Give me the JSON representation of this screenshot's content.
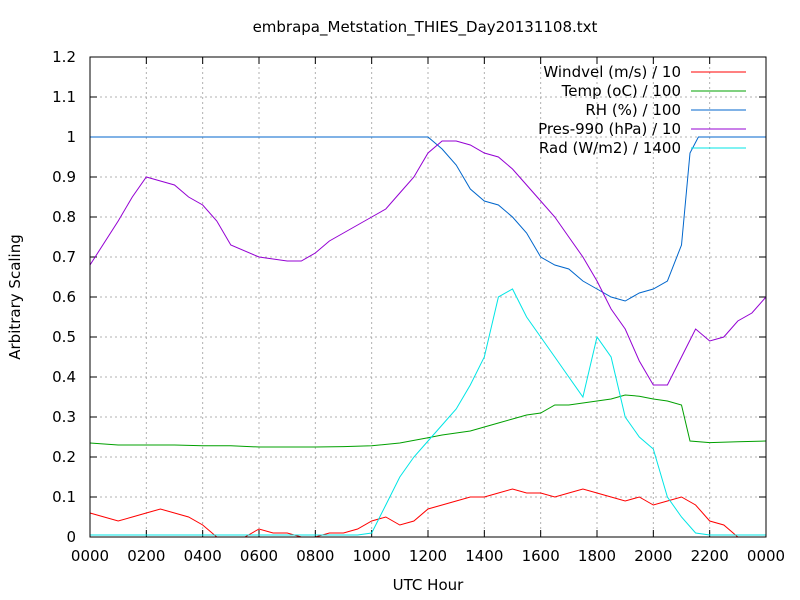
{
  "chart_data": {
    "type": "line",
    "title": "embrapa_Metstation_THIES_Day20131108.txt",
    "xlabel": "UTC Hour",
    "ylabel": "Arbitrary Scaling",
    "xlim": [
      0,
      24
    ],
    "ylim": [
      0,
      1.2
    ],
    "x_ticks": [
      "0000",
      "0200",
      "0400",
      "0600",
      "0800",
      "1000",
      "1200",
      "1400",
      "1600",
      "1800",
      "2000",
      "2200",
      "0000"
    ],
    "y_ticks": [
      "0",
      "0.1",
      "0.2",
      "0.3",
      "0.4",
      "0.5",
      "0.6",
      "0.7",
      "0.8",
      "0.9",
      "1",
      "1.1",
      "1.2"
    ],
    "grid": true,
    "legend_position": "top-right",
    "series": [
      {
        "name": "Windvel (m/s) / 10",
        "color": "#ff0000",
        "x": [
          0,
          0.5,
          1,
          1.5,
          2,
          2.5,
          3,
          3.5,
          4,
          4.5,
          5,
          5.5,
          6,
          6.5,
          7,
          7.5,
          8,
          8.5,
          9,
          9.5,
          10,
          10.5,
          11,
          11.5,
          12,
          12.5,
          13,
          13.5,
          14,
          14.5,
          15,
          15.5,
          16,
          16.5,
          17,
          17.5,
          18,
          18.5,
          19,
          19.5,
          20,
          20.5,
          21,
          21.5,
          22,
          22.5,
          23
        ],
        "values": [
          0.06,
          0.05,
          0.04,
          0.05,
          0.06,
          0.07,
          0.06,
          0.05,
          0.03,
          0.0,
          0.0,
          0.0,
          0.02,
          0.01,
          0.01,
          0.0,
          0.0,
          0.01,
          0.01,
          0.02,
          0.04,
          0.05,
          0.03,
          0.04,
          0.07,
          0.08,
          0.09,
          0.1,
          0.1,
          0.11,
          0.12,
          0.11,
          0.11,
          0.1,
          0.11,
          0.12,
          0.11,
          0.1,
          0.09,
          0.1,
          0.08,
          0.09,
          0.1,
          0.08,
          0.04,
          0.03,
          0.0
        ]
      },
      {
        "name": "Temp (oC) / 100",
        "color": "#00a000",
        "x": [
          0,
          1,
          2,
          3,
          4,
          5,
          6,
          7,
          8,
          9,
          10,
          11,
          12,
          12.5,
          13,
          13.5,
          14,
          14.5,
          15,
          15.5,
          16,
          16.5,
          17,
          17.5,
          18,
          18.5,
          19,
          19.5,
          20,
          20.5,
          21,
          21.3,
          22,
          23,
          24
        ],
        "values": [
          0.235,
          0.23,
          0.23,
          0.23,
          0.228,
          0.228,
          0.225,
          0.225,
          0.225,
          0.226,
          0.228,
          0.235,
          0.248,
          0.255,
          0.26,
          0.265,
          0.275,
          0.285,
          0.295,
          0.305,
          0.31,
          0.33,
          0.33,
          0.335,
          0.34,
          0.345,
          0.355,
          0.352,
          0.345,
          0.34,
          0.33,
          0.24,
          0.236,
          0.238,
          0.24
        ]
      },
      {
        "name": "RH (%) / 100",
        "color": "#0066cc",
        "x": [
          0,
          1,
          2,
          3,
          4,
          5,
          6,
          7,
          8,
          9,
          10,
          11,
          12,
          12.5,
          13,
          13.5,
          14,
          14.5,
          15,
          15.5,
          16,
          16.5,
          17,
          17.5,
          18,
          18.5,
          19,
          19.5,
          20,
          20.5,
          21,
          21.3,
          21.6,
          22,
          23,
          24
        ],
        "values": [
          1,
          1,
          1,
          1,
          1,
          1,
          1,
          1,
          1,
          1,
          1,
          1,
          1,
          0.97,
          0.93,
          0.87,
          0.84,
          0.83,
          0.8,
          0.76,
          0.7,
          0.68,
          0.67,
          0.64,
          0.62,
          0.6,
          0.59,
          0.61,
          0.62,
          0.64,
          0.73,
          0.96,
          1,
          1,
          1,
          1
        ]
      },
      {
        "name": "Pres-990 (hPa) / 10",
        "color": "#9400d3",
        "x": [
          0,
          1,
          1.5,
          2,
          2.5,
          3,
          3.5,
          4,
          4.5,
          5,
          6,
          7,
          7.5,
          8,
          8.5,
          9,
          9.5,
          10,
          10.5,
          11,
          11.5,
          12,
          12.5,
          13,
          13.5,
          14,
          14.5,
          15,
          15.5,
          16,
          16.5,
          17,
          17.5,
          18,
          18.5,
          19,
          19.5,
          20,
          20.5,
          21,
          21.5,
          22,
          22.5,
          23,
          23.5,
          24
        ],
        "values": [
          0.68,
          0.79,
          0.85,
          0.9,
          0.89,
          0.88,
          0.85,
          0.83,
          0.79,
          0.73,
          0.7,
          0.69,
          0.69,
          0.71,
          0.74,
          0.76,
          0.78,
          0.8,
          0.82,
          0.86,
          0.9,
          0.96,
          0.99,
          0.99,
          0.98,
          0.96,
          0.95,
          0.92,
          0.88,
          0.84,
          0.8,
          0.75,
          0.7,
          0.64,
          0.57,
          0.52,
          0.44,
          0.38,
          0.38,
          0.45,
          0.52,
          0.49,
          0.5,
          0.54,
          0.56,
          0.6
        ]
      },
      {
        "name": "Rad (W/m2) / 1400",
        "color": "#00e5e5",
        "x": [
          0,
          4,
          8,
          9.5,
          10,
          10.5,
          11,
          11.5,
          12,
          12.5,
          13,
          13.5,
          14,
          14.5,
          15,
          15.5,
          16,
          16.5,
          17,
          17.5,
          18,
          18.5,
          19,
          19.5,
          20,
          20.5,
          21,
          21.5,
          22,
          24
        ],
        "values": [
          0.005,
          0.005,
          0.005,
          0.005,
          0.01,
          0.08,
          0.15,
          0.2,
          0.24,
          0.28,
          0.32,
          0.38,
          0.45,
          0.6,
          0.62,
          0.55,
          0.5,
          0.45,
          0.4,
          0.35,
          0.5,
          0.45,
          0.3,
          0.25,
          0.22,
          0.1,
          0.05,
          0.01,
          0.005,
          0.005
        ]
      }
    ]
  }
}
